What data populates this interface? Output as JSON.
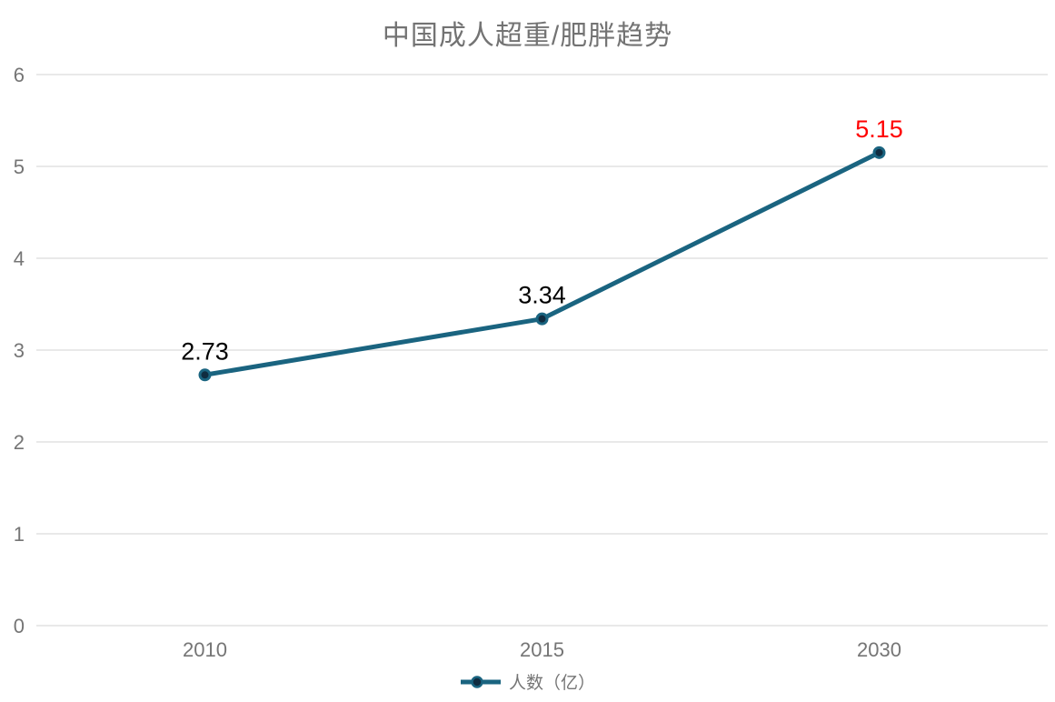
{
  "title": "中国成人超重/肥胖趋势",
  "chart_data": {
    "type": "line",
    "title": "中国成人超重/肥胖趋势",
    "categories": [
      "2010",
      "2015",
      "2030"
    ],
    "series": [
      {
        "name": "人数（亿）",
        "values": [
          2.73,
          3.34,
          5.15
        ]
      }
    ],
    "value_labels": [
      "2.73",
      "3.34",
      "5.15"
    ],
    "value_label_colors": [
      "#000000",
      "#000000",
      "#ff0000"
    ],
    "xlabel": "",
    "ylabel": "",
    "ylim": [
      0,
      6
    ],
    "y_ticks": [
      0,
      1,
      2,
      3,
      4,
      5,
      6
    ],
    "grid": true,
    "legend_position": "bottom",
    "colors": {
      "line": "#1a6480",
      "marker_fill": "#102c40",
      "grid": "#dcdcdc",
      "tick_text": "#757575",
      "title_text": "#737373",
      "highlight": "#ff0000"
    }
  },
  "legend": {
    "label": "人数（亿）"
  }
}
